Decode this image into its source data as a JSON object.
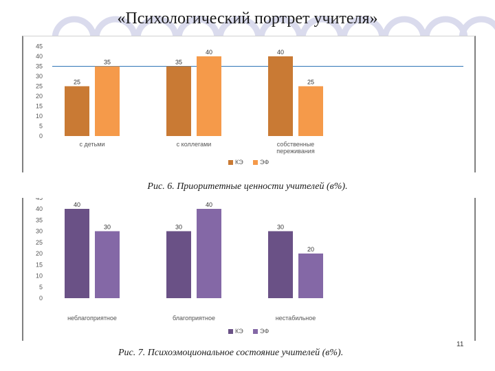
{
  "slide": {
    "title": "«Психологический портрет учителя»",
    "page_number": "11"
  },
  "charts": [
    {
      "caption": "Рис. 6. Приоритетные ценности учителей (в%).",
      "chart_data": {
        "type": "bar",
        "title": "",
        "xlabel": "",
        "ylabel": "",
        "ylim": [
          0,
          45
        ],
        "ytick_step": 5,
        "grid": false,
        "legend_position": "bottom",
        "reference_line": 35,
        "reference_line_color": "#2e75b6",
        "categories": [
          "с детьми",
          "с коллегами",
          "собственные переживания"
        ],
        "category_label_lines": [
          [
            "с детьми"
          ],
          [
            "с коллегами"
          ],
          [
            "собственные",
            "переживания"
          ]
        ],
        "series": [
          {
            "name": "КЭ",
            "color": "#c97a34",
            "values": [
              25,
              35,
              40
            ]
          },
          {
            "name": "ЭФ",
            "color": "#f59a4a",
            "values": [
              35,
              40,
              25
            ]
          }
        ]
      }
    },
    {
      "caption": "Рис. 7. Психоэмоциональное состояние учителей  (в%).",
      "chart_data": {
        "type": "bar",
        "title": "",
        "xlabel": "",
        "ylabel": "",
        "ylim": [
          0,
          45
        ],
        "ytick_step": 5,
        "grid": false,
        "legend_position": "bottom",
        "categories": [
          "неблагоприятное",
          "благоприятное",
          "нестабильное"
        ],
        "category_label_lines": [
          [
            "неблагоприятное"
          ],
          [
            "благоприятное"
          ],
          [
            "нестабильное"
          ]
        ],
        "series": [
          {
            "name": "КЭ",
            "color": "#6a5186",
            "values": [
              40,
              30,
              30
            ]
          },
          {
            "name": "ЭФ",
            "color": "#8468a6",
            "values": [
              30,
              40,
              20
            ]
          }
        ]
      }
    }
  ],
  "decoration": {
    "circle_color": "#dadbed"
  }
}
